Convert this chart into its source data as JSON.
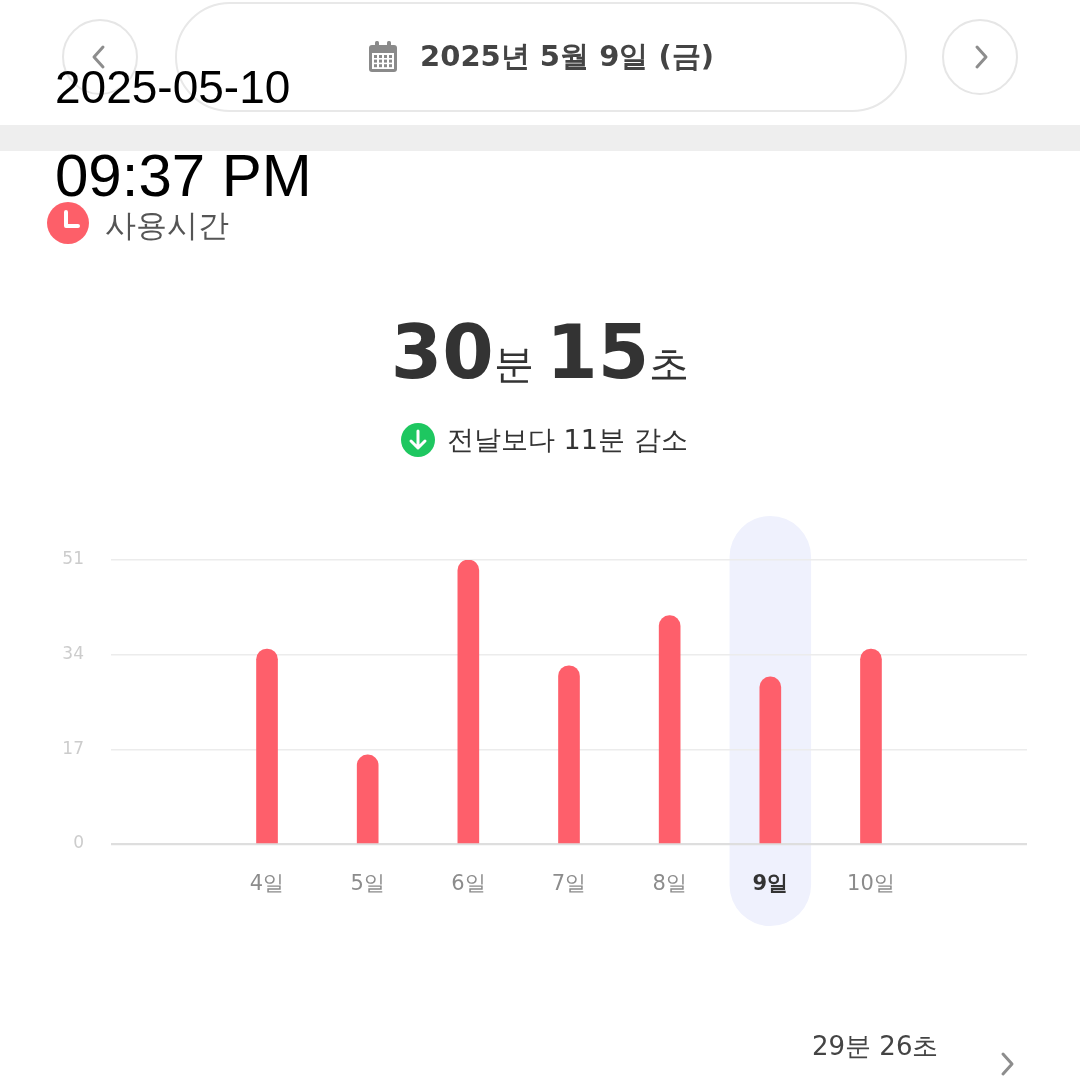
{
  "chart_data": {
    "type": "bar",
    "title": "사용시간",
    "subtitle": "30분 15초",
    "annotations": [
      "2025년 5월 9일 (금)",
      "2025-05-10",
      "09:37 PM",
      "전날보다 11분 감소",
      "29분 26초"
    ],
    "categories": [
      "4일",
      "5일",
      "6일",
      "7일",
      "8일",
      "9일",
      "10일"
    ],
    "values": [
      35,
      16,
      51,
      32,
      41,
      30,
      35
    ],
    "color": "#fe5f6b",
    "ylim": [
      0,
      51
    ],
    "yticks": [
      0,
      17,
      34,
      51
    ],
    "grid": "y",
    "bands": [
      {
        "axis": "x",
        "from": "9일",
        "to": "9일",
        "color": "#eff1fd"
      }
    ]
  }
}
